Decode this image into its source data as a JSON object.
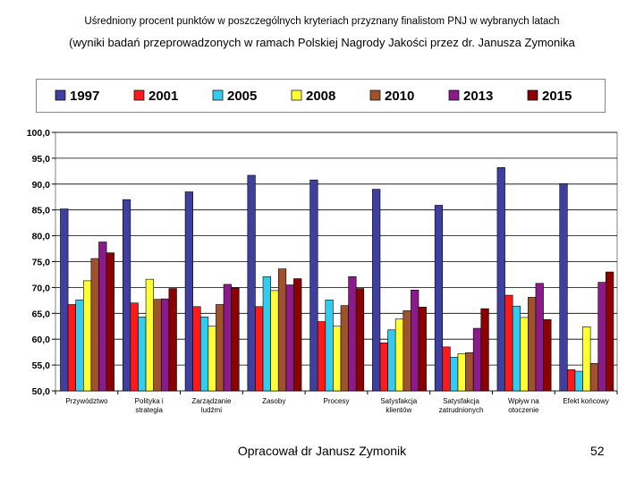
{
  "slide": {
    "title_line1": "Uśredniony procent punktów w poszczególnych kryteriach przyznany finalistom PNJ  w wybranych  latach",
    "title_line2": "(wyniki badań przeprowadzonych w ramach Polskiej Nagrody Jakości przez dr. Janusza Zymonika",
    "footer": "Opracował dr Janusz Zymonik",
    "page_number": "52"
  },
  "chart_data": {
    "type": "bar",
    "title": "",
    "xlabel": "",
    "ylabel": "",
    "ylim": [
      50,
      100
    ],
    "yticks": [
      "100,0",
      "95,0",
      "90,0",
      "85,0",
      "80,0",
      "75,0",
      "70,0",
      "65,0",
      "60,0",
      "55,0",
      "50,0"
    ],
    "grid": true,
    "legend_position": "top",
    "categories": [
      [
        "Przywództwo"
      ],
      [
        "Polityka i",
        "strategia"
      ],
      [
        "Zarządzanie",
        "ludźmi"
      ],
      [
        "Zasoby"
      ],
      [
        "Procesy"
      ],
      [
        "Satysfakcja",
        "klientów"
      ],
      [
        "Satysfakcja",
        "zatrudnionych"
      ],
      [
        "Wpływ na",
        "otoczenie"
      ],
      [
        "Efekt końcowy"
      ]
    ],
    "series": [
      {
        "name": "1997",
        "color": "#3f3f9f",
        "values": [
          85.2,
          87.0,
          88.5,
          91.7,
          90.8,
          89.0,
          85.9,
          93.2,
          90.1
        ]
      },
      {
        "name": "2001",
        "color": "#ff1a1a",
        "values": [
          66.7,
          67.0,
          66.3,
          66.3,
          63.4,
          59.3,
          58.5,
          68.5,
          54.1
        ]
      },
      {
        "name": "2005",
        "color": "#33ccee",
        "values": [
          67.6,
          64.3,
          64.3,
          72.1,
          67.6,
          61.8,
          56.5,
          66.4,
          53.8
        ]
      },
      {
        "name": "2008",
        "color": "#ffff33",
        "values": [
          71.3,
          71.6,
          62.5,
          69.4,
          62.5,
          63.9,
          57.2,
          64.2,
          62.4
        ]
      },
      {
        "name": "2010",
        "color": "#a0522d",
        "values": [
          75.6,
          67.7,
          66.7,
          73.6,
          66.5,
          65.5,
          57.4,
          68.1,
          55.3
        ]
      },
      {
        "name": "2013",
        "color": "#8b1a8b",
        "values": [
          78.8,
          67.8,
          70.6,
          70.5,
          72.1,
          69.5,
          62.1,
          70.8,
          71.0
        ]
      },
      {
        "name": "2015",
        "color": "#8b0000",
        "values": [
          76.7,
          69.8,
          69.9,
          71.7,
          69.8,
          66.2,
          65.9,
          63.8,
          73.0
        ]
      }
    ]
  }
}
